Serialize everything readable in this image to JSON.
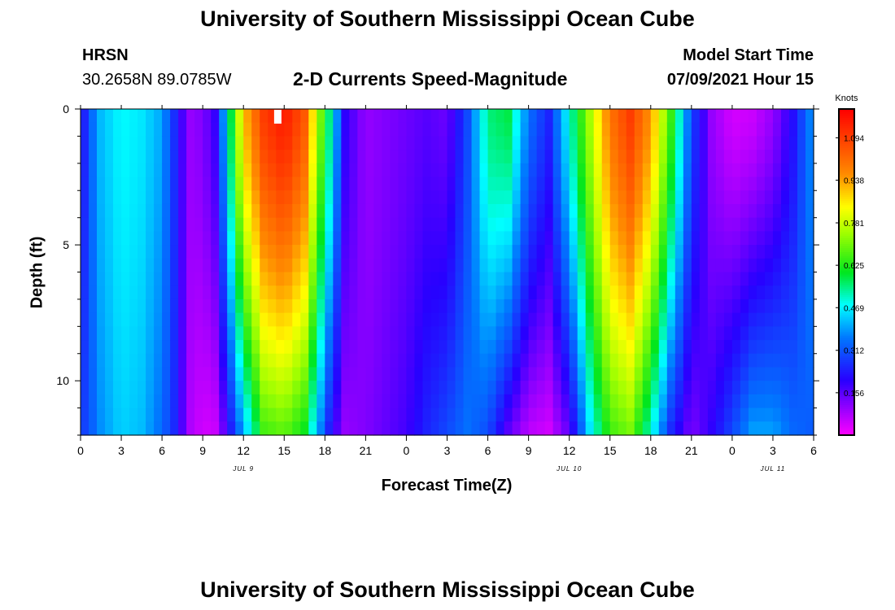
{
  "page": {
    "title": "University of Southern Mississippi Ocean Cube",
    "footer_title": "University of Southern Mississippi Ocean Cube",
    "station": "HRSN",
    "coords": "30.2658N  89.0785W",
    "subtitle": "2-D Currents Speed-Magnitude",
    "model_start_label": "Model Start Time",
    "model_start_value": "07/09/2021 Hour 15"
  },
  "chart_data": {
    "type": "heatmap",
    "title": "2-D Currents Speed-Magnitude",
    "xlabel": "Forecast Time(Z)",
    "ylabel": "Depth (ft)",
    "x_range_hours": [
      0,
      54
    ],
    "y_range_ft": [
      0,
      12
    ],
    "x_tick_labels": [
      "0",
      "3",
      "6",
      "9",
      "12",
      "15",
      "18",
      "21",
      "0",
      "3",
      "6",
      "9",
      "12",
      "15",
      "18",
      "21",
      "0",
      "3",
      "6"
    ],
    "y_tick_labels": [
      "0",
      "5",
      "10"
    ],
    "y_tick_values": [
      0,
      5,
      10
    ],
    "date_labels": [
      {
        "label": "JUL 9",
        "hour": 12
      },
      {
        "label": "JUL 10",
        "hour": 36
      },
      {
        "label": "JUL 11",
        "hour": 51
      }
    ],
    "colorbar": {
      "title": "Knots",
      "min": 0.0,
      "max": 1.2,
      "tick_labels": [
        "1.094",
        "0.938",
        "0.781",
        "0.625",
        "0.469",
        "0.312",
        "0.156"
      ],
      "tick_values": [
        1.094,
        0.938,
        0.781,
        0.625,
        0.469,
        0.312,
        0.156
      ]
    },
    "profile_hours": [
      0,
      0.5,
      1.5,
      3,
      4.5,
      6,
      7,
      8,
      9,
      10,
      11,
      12,
      13.5,
      15,
      16.5,
      17.5,
      18.5,
      19.5,
      21,
      22.5,
      24,
      25.5,
      27,
      28.5,
      30,
      31.5,
      33,
      34.5,
      36,
      37.5,
      39,
      40.5,
      42,
      43.5,
      45,
      46.5,
      48,
      49.5,
      51,
      52.5,
      54
    ],
    "surface_speed": [
      0.18,
      0.3,
      0.42,
      0.48,
      0.46,
      0.4,
      0.25,
      0.1,
      0.12,
      0.2,
      0.55,
      0.9,
      1.1,
      1.16,
      1.05,
      0.75,
      0.5,
      0.2,
      0.1,
      0.12,
      0.14,
      0.16,
      0.14,
      0.3,
      0.55,
      0.58,
      0.35,
      0.25,
      0.5,
      0.75,
      1.0,
      1.1,
      0.95,
      0.65,
      0.3,
      0.1,
      0.04,
      0.05,
      0.1,
      0.22,
      0.4
    ],
    "bottom_speed": [
      0.28,
      0.3,
      0.38,
      0.44,
      0.42,
      0.34,
      0.25,
      0.08,
      0.04,
      0.05,
      0.22,
      0.4,
      0.65,
      0.68,
      0.6,
      0.4,
      0.2,
      0.1,
      0.12,
      0.15,
      0.18,
      0.25,
      0.3,
      0.35,
      0.3,
      0.15,
      0.06,
      0.04,
      0.15,
      0.45,
      0.65,
      0.7,
      0.5,
      0.25,
      0.12,
      0.2,
      0.3,
      0.4,
      0.4,
      0.34,
      0.32
    ],
    "note_marker_hour": 14.5
  }
}
